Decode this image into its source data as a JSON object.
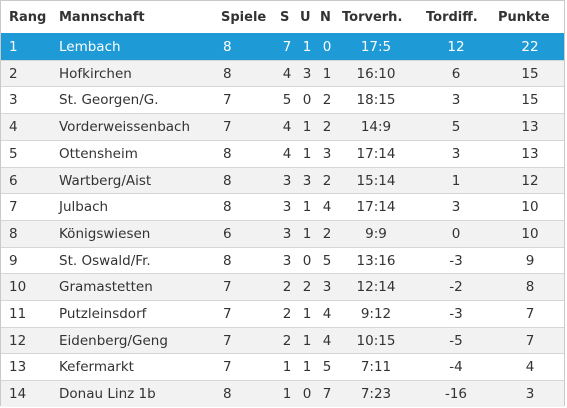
{
  "header": {
    "rang": "Rang",
    "mannschaft": "Mannschaft",
    "spiele": "Spiele",
    "s": "S",
    "u": "U",
    "n": "N",
    "torverh": "Torverh.",
    "tordiff": "Tordiff.",
    "punkte": "Punkte"
  },
  "rows": [
    {
      "rang": "1",
      "team": "Lembach",
      "spiele": "8",
      "s": "7",
      "u": "1",
      "n": "0",
      "torverh": "17:5",
      "tordiff": "12",
      "punkte": "22"
    },
    {
      "rang": "2",
      "team": "Hofkirchen",
      "spiele": "8",
      "s": "4",
      "u": "3",
      "n": "1",
      "torverh": "16:10",
      "tordiff": "6",
      "punkte": "15"
    },
    {
      "rang": "3",
      "team": "St. Georgen/G.",
      "spiele": "7",
      "s": "5",
      "u": "0",
      "n": "2",
      "torverh": "18:15",
      "tordiff": "3",
      "punkte": "15"
    },
    {
      "rang": "4",
      "team": "Vorderweissenbach",
      "spiele": "7",
      "s": "4",
      "u": "1",
      "n": "2",
      "torverh": "14:9",
      "tordiff": "5",
      "punkte": "13"
    },
    {
      "rang": "5",
      "team": "Ottensheim",
      "spiele": "8",
      "s": "4",
      "u": "1",
      "n": "3",
      "torverh": "17:14",
      "tordiff": "3",
      "punkte": "13"
    },
    {
      "rang": "6",
      "team": "Wartberg/Aist",
      "spiele": "8",
      "s": "3",
      "u": "3",
      "n": "2",
      "torverh": "15:14",
      "tordiff": "1",
      "punkte": "12"
    },
    {
      "rang": "7",
      "team": "Julbach",
      "spiele": "8",
      "s": "3",
      "u": "1",
      "n": "4",
      "torverh": "17:14",
      "tordiff": "3",
      "punkte": "10"
    },
    {
      "rang": "8",
      "team": "Königswiesen",
      "spiele": "6",
      "s": "3",
      "u": "1",
      "n": "2",
      "torverh": "9:9",
      "tordiff": "0",
      "punkte": "10"
    },
    {
      "rang": "9",
      "team": "St. Oswald/Fr.",
      "spiele": "8",
      "s": "3",
      "u": "0",
      "n": "5",
      "torverh": "13:16",
      "tordiff": "-3",
      "punkte": "9"
    },
    {
      "rang": "10",
      "team": "Gramastetten",
      "spiele": "7",
      "s": "2",
      "u": "2",
      "n": "3",
      "torverh": "12:14",
      "tordiff": "-2",
      "punkte": "8"
    },
    {
      "rang": "11",
      "team": "Putzleinsdorf",
      "spiele": "7",
      "s": "2",
      "u": "1",
      "n": "4",
      "torverh": "9:12",
      "tordiff": "-3",
      "punkte": "7"
    },
    {
      "rang": "12",
      "team": "Eidenberg/Geng",
      "spiele": "7",
      "s": "2",
      "u": "1",
      "n": "4",
      "torverh": "10:15",
      "tordiff": "-5",
      "punkte": "7"
    },
    {
      "rang": "13",
      "team": "Kefermarkt",
      "spiele": "7",
      "s": "1",
      "u": "1",
      "n": "5",
      "torverh": "7:11",
      "tordiff": "-4",
      "punkte": "4"
    },
    {
      "rang": "14",
      "team": "Donau Linz 1b",
      "spiele": "8",
      "s": "1",
      "u": "0",
      "n": "7",
      "torverh": "7:23",
      "tordiff": "-16",
      "punkte": "3"
    }
  ],
  "highlight_color": "#1e9ad6"
}
